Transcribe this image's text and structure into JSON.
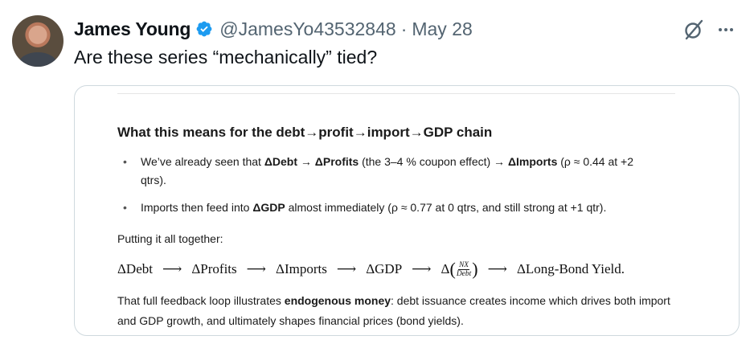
{
  "tweet": {
    "author_name": "James Young",
    "handle": "@JamesYo43532848",
    "separator": "·",
    "date": "May 28",
    "text": "Are these series “mechanically” tied?"
  },
  "media": {
    "heading": "What this means for the debt→profit→import→GDP chain",
    "bullets": [
      {
        "pre": "We’ve already seen that ",
        "bold1": "ΔDebt → ΔProfits",
        "mid": " (the 3–4 % coupon effect) → ",
        "bold2": "ΔImports",
        "post": " (ρ ≈ 0.44 at +2 qtrs)."
      },
      {
        "pre": "Imports then feed into ",
        "bold1": "ΔGDP",
        "post": " almost immediately (ρ ≈ 0.77 at 0 qtrs, and still strong at +1 qtr)."
      }
    ],
    "putting_together": "Putting it all together:",
    "chain": {
      "t1": "ΔDebt",
      "t2": "ΔProfits",
      "t3": "ΔImports",
      "t4": "ΔGDP",
      "t5_delta": "Δ",
      "t5_num": "NX",
      "t5_den": "Debt",
      "t6": "ΔLong-Bond Yield.",
      "arrow": "⟶"
    },
    "conclusion": {
      "pre": "That full feedback loop illustrates ",
      "bold": "endogenous money",
      "post": ": debt issuance creates income which drives both import and GDP growth, and ultimately shapes financial prices (bond yields)."
    }
  },
  "colors": {
    "verified": "#1d9bf0",
    "secondary_text": "#536471",
    "border": "#cfd9de"
  }
}
